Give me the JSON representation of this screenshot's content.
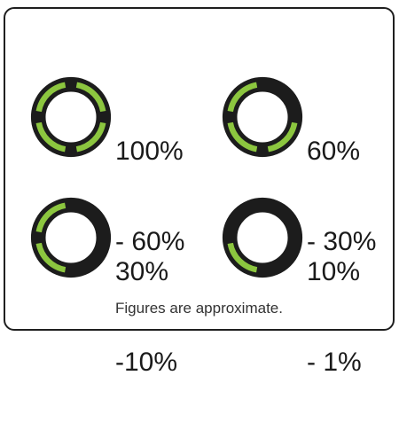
{
  "colors": {
    "ring_dark": "#1c1c1c",
    "ring_lit": "#8cc63f",
    "text": "#1a1a1a"
  },
  "indicators": [
    {
      "line1": "100%",
      "line2": "- 60%",
      "lit_segments": 4
    },
    {
      "line1": "60%",
      "line2": "- 30%",
      "lit_segments": 3
    },
    {
      "line1": "30%",
      "line2": "-10%",
      "lit_segments": 2
    },
    {
      "line1": "10%",
      "line2": "- 1%",
      "lit_segments": 1
    }
  ],
  "footnote": "Figures are approximate."
}
